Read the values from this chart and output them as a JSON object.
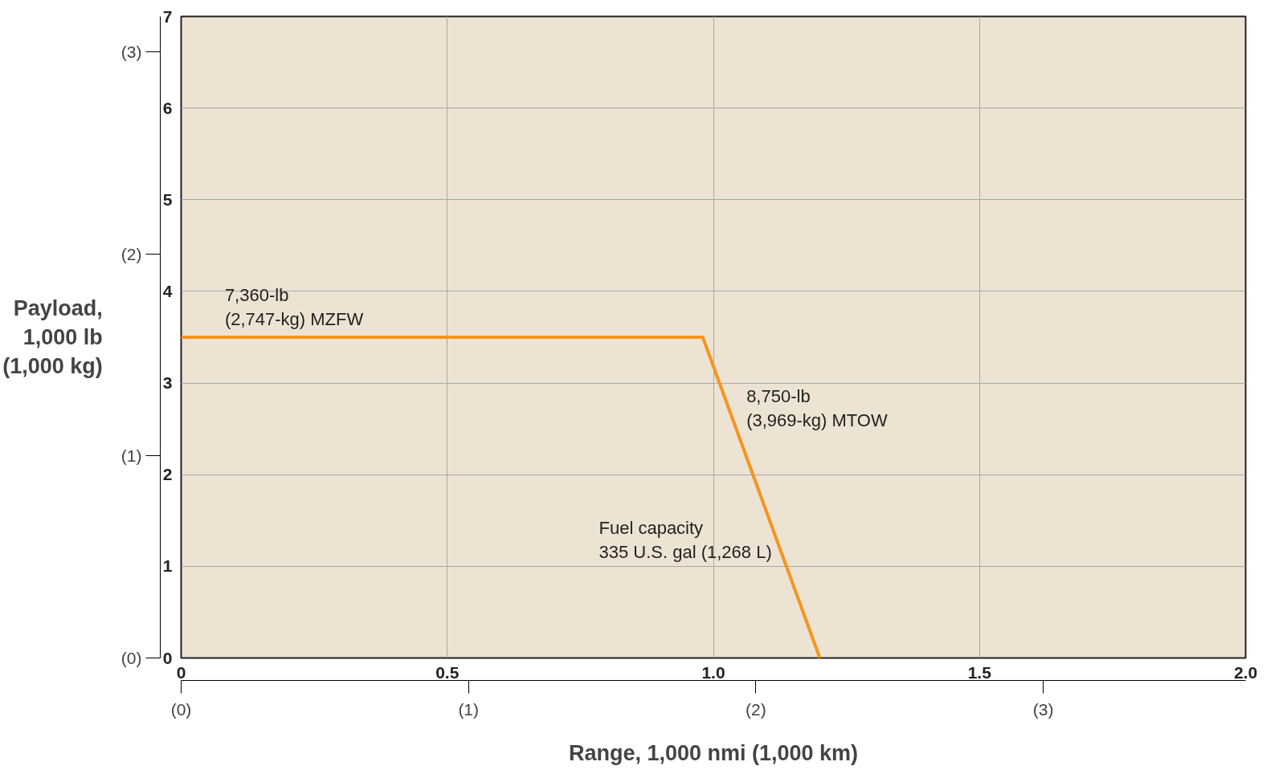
{
  "chart_data": {
    "type": "line",
    "xlabel": "Range, 1,000 nmi (1,000 km)",
    "y2label": "Payload,\n1,000 lb\n(1,000 kg)",
    "x": [
      0,
      0.98,
      1.2
    ],
    "series": [
      {
        "color": "#f7941d",
        "values": [
          3.5,
          3.5,
          0
        ]
      }
    ],
    "xlim": [
      0,
      2.0
    ],
    "xticks": [
      0,
      0.5,
      {
        "value": 1,
        "label": "1.0"
      },
      1.5,
      {
        "value": 2,
        "label": "2.0"
      }
    ],
    "ylim": [
      0,
      7
    ],
    "yticks": [
      0,
      1,
      2,
      3,
      4,
      5,
      6,
      7
    ],
    "y2lim": [
      0,
      3.175
    ],
    "y2ticks": [
      {
        "value": 0,
        "label": "(0)"
      },
      {
        "value": 1,
        "label": "(1)"
      },
      {
        "value": 2,
        "label": "(2)"
      },
      {
        "value": 3,
        "label": "(3)"
      }
    ],
    "x2lim": [
      0,
      3.704
    ],
    "x2ticks": [
      {
        "value": 0,
        "label": "(0)"
      },
      {
        "value": 1,
        "label": "(1)"
      },
      {
        "value": 2,
        "label": "(2)"
      },
      {
        "value": 3,
        "label": "(3)"
      }
    ],
    "grid": true,
    "marker": "none",
    "line_style": "solid",
    "annotations": [
      {
        "text": "7,360-lb\n(2,747-kg) MZFW",
        "x": 0.07,
        "y": 3.5
      },
      {
        "text": "8,750-lb\n(3,969-kg) MTOW",
        "x": 1.05,
        "y": 2.4
      },
      "Fuel capacity\n335 U.S. gal (1,268 L)"
    ]
  }
}
